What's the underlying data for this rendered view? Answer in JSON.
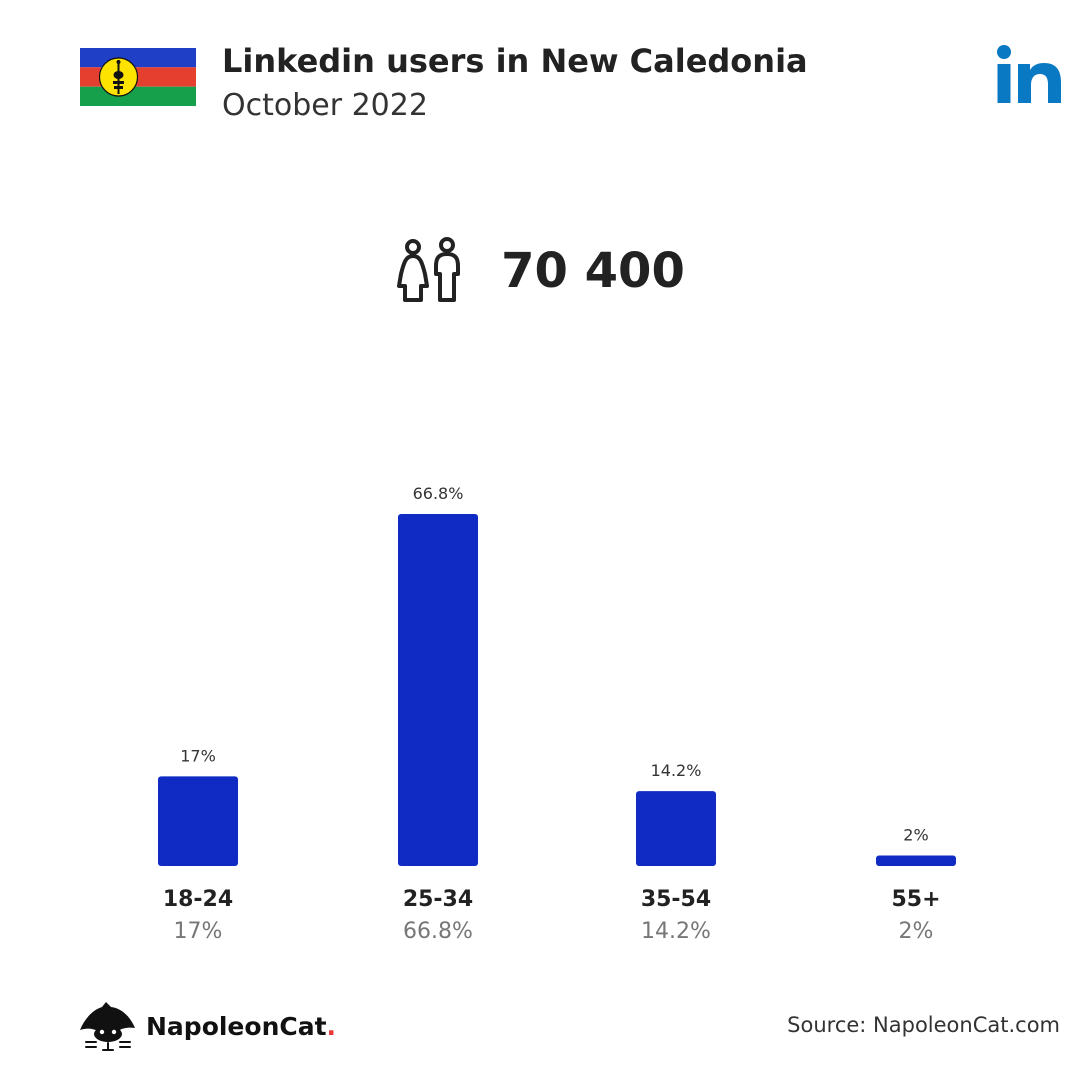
{
  "header": {
    "title": "Linkedin users in New Caledonia",
    "subtitle": "October 2022"
  },
  "icons": {
    "flag": "new-caledonia-flag",
    "brand": "linkedin-logo-icon",
    "people": "people-icon",
    "footer": "napoleoncat-logo-icon"
  },
  "colors": {
    "bar": "#0f2bc3",
    "linkedin_blue": "#0a79c3",
    "flag_blue": "#1f3fc6",
    "flag_red": "#e5402f",
    "flag_green": "#17a04b",
    "flag_yellow": "#ffe300"
  },
  "summary": {
    "total_users": "70 400"
  },
  "chart_data": {
    "type": "bar",
    "title": "Linkedin users in New Caledonia",
    "categories": [
      "18-24",
      "25-34",
      "35-54",
      "55+"
    ],
    "values": [
      17,
      66.8,
      14.2,
      2
    ],
    "value_labels": [
      "17%",
      "66.8%",
      "14.2%",
      "2%"
    ],
    "ylim": [
      0,
      66.8
    ],
    "grid": false,
    "legend": "none"
  },
  "footer": {
    "brand_name": "NapoleonCat",
    "brand_dot": ".",
    "source": "Source: NapoleonCat.com"
  }
}
